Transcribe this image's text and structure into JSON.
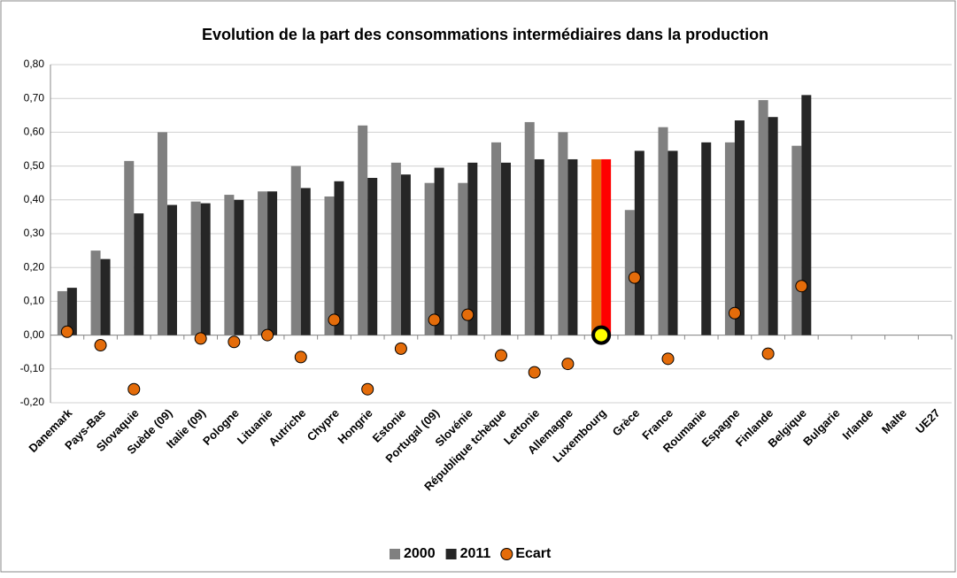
{
  "chart_data": {
    "type": "bar_dot",
    "title": "Evolution de la part des consommations  intermédiaires dans la production",
    "categories": [
      "Danemark",
      "Pays-Bas",
      "Slovaquie",
      "Suède (09)",
      "Italie (09)",
      "Pologne",
      "Lituanie",
      "Autriche",
      "Chypre",
      "Hongrie",
      "Estonie",
      "Portugal (09)",
      "Slovénie",
      "République tchèque",
      "Lettonie",
      "Allemagne",
      "Luxembourg",
      "Grèce",
      "France",
      "Roumanie",
      "Espagne",
      "Finlande",
      "Belgique",
      "Bulgarie",
      "Irlande",
      "Malte",
      "UE27"
    ],
    "series": [
      {
        "name": "2000",
        "mark": "bar",
        "color": "#808080",
        "highlight": {
          "category": "Luxembourg",
          "color": "#e46c0a"
        },
        "values": [
          0.13,
          0.25,
          0.515,
          0.6,
          0.395,
          0.415,
          0.425,
          0.5,
          0.41,
          0.62,
          0.51,
          0.45,
          0.45,
          0.57,
          0.63,
          0.6,
          0.52,
          0.37,
          0.615,
          null,
          0.57,
          0.695,
          0.56,
          null,
          null,
          null,
          null
        ]
      },
      {
        "name": "2011",
        "mark": "bar",
        "color": "#262626",
        "highlight": {
          "category": "Luxembourg",
          "color": "#ff0000"
        },
        "values": [
          0.14,
          0.225,
          0.36,
          0.385,
          0.39,
          0.4,
          0.425,
          0.435,
          0.455,
          0.465,
          0.475,
          0.495,
          0.51,
          0.51,
          0.52,
          0.52,
          0.52,
          0.545,
          0.545,
          0.57,
          0.635,
          0.645,
          0.71,
          null,
          null,
          null,
          null
        ]
      },
      {
        "name": "Ecart",
        "mark": "dot",
        "color": "#e46c0a",
        "highlight": {
          "category": "Luxembourg",
          "color": "#ffff00"
        },
        "values": [
          0.01,
          -0.03,
          -0.16,
          null,
          -0.01,
          -0.02,
          0.0,
          -0.065,
          0.045,
          -0.16,
          -0.04,
          0.045,
          0.06,
          -0.06,
          -0.11,
          -0.085,
          0.0,
          0.17,
          -0.07,
          null,
          0.065,
          -0.055,
          0.145,
          null,
          null,
          null,
          null
        ]
      }
    ],
    "ylim": [
      -0.2,
      0.8
    ],
    "yticks": [
      {
        "value": -0.2,
        "label": "-0,20"
      },
      {
        "value": -0.1,
        "label": "-0,10"
      },
      {
        "value": 0,
        "label": "0,00"
      },
      {
        "value": 0.1,
        "label": "0,10"
      },
      {
        "value": 0.2,
        "label": "0,20"
      },
      {
        "value": 0.3,
        "label": "0,30"
      },
      {
        "value": 0.4,
        "label": "0,40"
      },
      {
        "value": 0.5,
        "label": "0,50"
      },
      {
        "value": 0.6,
        "label": "0,60"
      },
      {
        "value": 0.7,
        "label": "0,70"
      },
      {
        "value": 0.8,
        "label": "0,80"
      }
    ],
    "grid": true,
    "legend": "bottom"
  }
}
